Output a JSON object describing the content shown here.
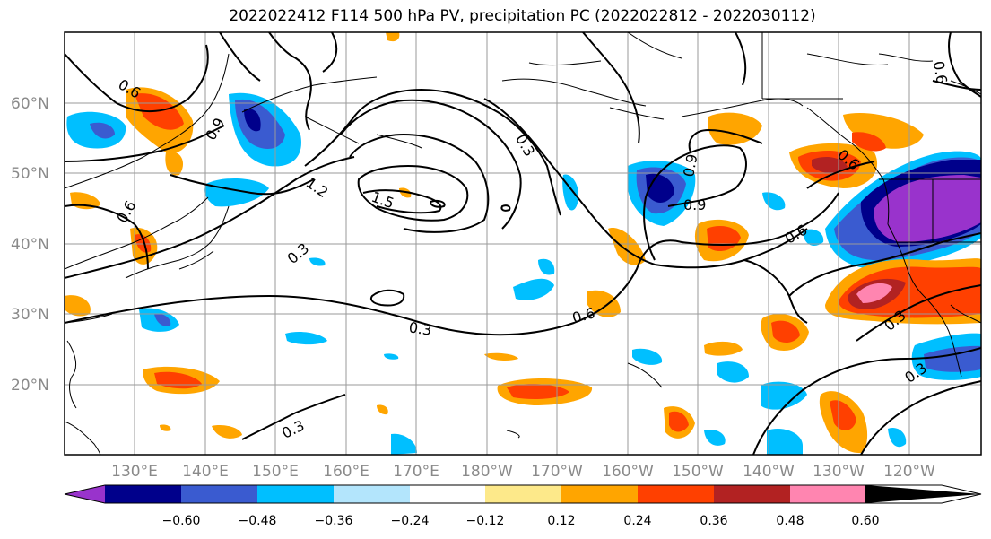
{
  "figure": {
    "title": "2022022412 F114 500 hPa PV, precipitation PC (2022022812 - 2022030112)"
  },
  "map": {
    "lat_ticks": [
      "60°N",
      "50°N",
      "40°N",
      "30°N",
      "20°N"
    ],
    "lon_ticks": [
      "130°E",
      "140°E",
      "150°E",
      "160°E",
      "170°E",
      "180°W",
      "170°W",
      "160°W",
      "150°W",
      "140°W",
      "130°W",
      "120°W"
    ],
    "contour_labels": [
      "0.6",
      "0.9",
      "1.2",
      "1.5",
      "0.3",
      "0.9",
      "0.6",
      "0.9",
      "0.6",
      "0.3",
      "0.6",
      "0.3",
      "0.3",
      "0.3",
      "0.6",
      "0.3",
      "0.6",
      "0.3"
    ]
  },
  "colorbar": {
    "ticks": [
      "−0.60",
      "−0.48",
      "−0.36",
      "−0.24",
      "−0.12",
      "0.12",
      "0.24",
      "0.36",
      "0.48",
      "0.60"
    ],
    "colors": [
      "#9933cc",
      "#00008b",
      "#3a5bd0",
      "#00bfff",
      "#b3e5fc",
      "#ffffff",
      "#fde98a",
      "#ffa500",
      "#ff4000",
      "#b22222",
      "#ff85b0"
    ]
  }
}
